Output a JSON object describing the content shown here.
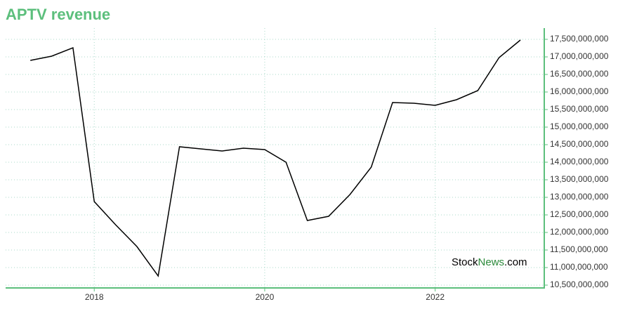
{
  "chart_data": {
    "type": "line",
    "title": "APTV revenue",
    "watermark": [
      "Stock",
      "News",
      ".com"
    ],
    "x": [
      2017.25,
      2017.5,
      2017.75,
      2018,
      2018.25,
      2018.5,
      2018.75,
      2019,
      2019.25,
      2019.5,
      2019.75,
      2020,
      2020.25,
      2020.5,
      2020.75,
      2021,
      2021.25,
      2021.5,
      2021.75,
      2022,
      2022.25,
      2022.5,
      2022.75,
      2023
    ],
    "series": [
      {
        "color": "#000000",
        "values": [
          16900000000,
          17020000000,
          17260000000,
          12880000000,
          12220000000,
          11600000000,
          10760000000,
          14440000000,
          14380000000,
          14320000000,
          14400000000,
          14360000000,
          14000000000,
          12340000000,
          12460000000,
          13080000000,
          13860000000,
          15700000000,
          15680000000,
          15620000000,
          15780000000,
          16040000000,
          16980000000,
          17480000000
        ]
      }
    ],
    "xlim": [
      2016.96,
      2023.28
    ],
    "xticks": [
      2018,
      2020,
      2022
    ],
    "ylim": [
      10420000000,
      17820000000
    ],
    "yticks": [
      {
        "value": 10500000000,
        "label": "10,500,000,000"
      },
      {
        "value": 11000000000,
        "label": "11,000,000,000"
      },
      {
        "value": 11500000000,
        "label": "11,500,000,000"
      },
      {
        "value": 12000000000,
        "label": "12,000,000,000"
      },
      {
        "value": 12500000000,
        "label": "12,500,000,000"
      },
      {
        "value": 13000000000,
        "label": "13,000,000,000"
      },
      {
        "value": 13500000000,
        "label": "13,500,000,000"
      },
      {
        "value": 14000000000,
        "label": "14,000,000,000"
      },
      {
        "value": 14500000000,
        "label": "14,500,000,000"
      },
      {
        "value": 15000000000,
        "label": "15,000,000,000"
      },
      {
        "value": 15500000000,
        "label": "15,500,000,000"
      },
      {
        "value": 16000000000,
        "label": "16,000,000,000"
      },
      {
        "value": 16500000000,
        "label": "16,500,000,000"
      },
      {
        "value": 17000000000,
        "label": "17,000,000,000"
      },
      {
        "value": 17500000000,
        "label": "17,500,000,000"
      }
    ],
    "grid": true,
    "axis_color": "#5cbf7c"
  }
}
